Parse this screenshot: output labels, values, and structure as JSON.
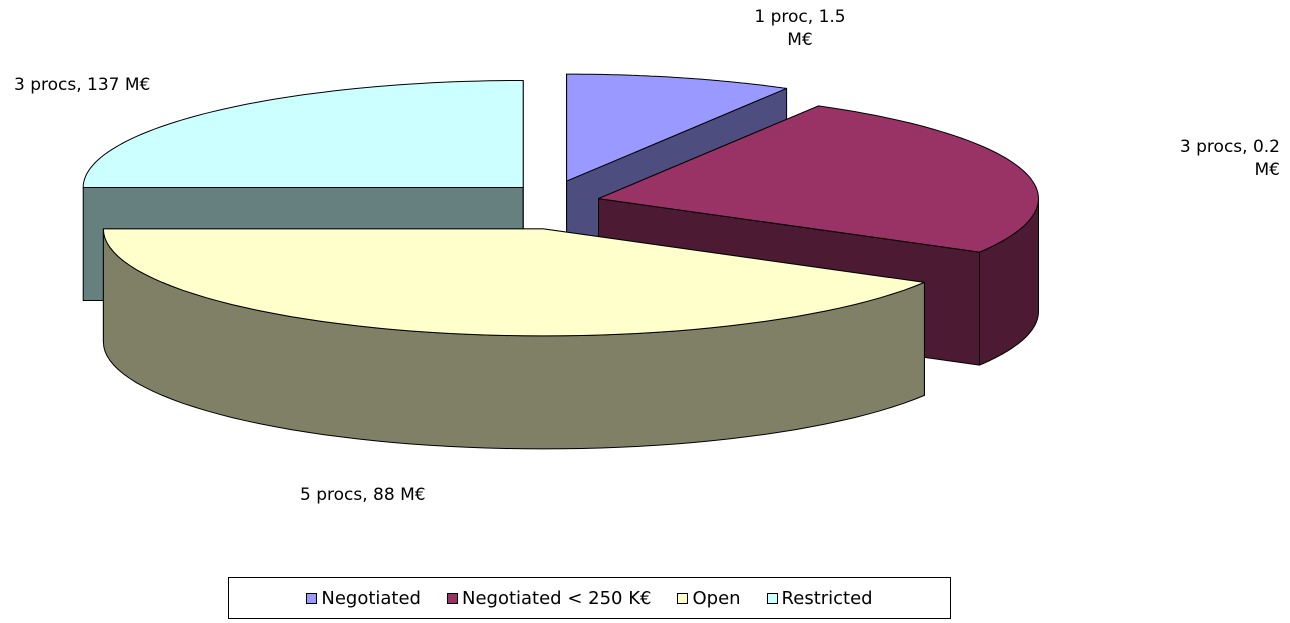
{
  "chart_data": {
    "type": "pie",
    "categories": [
      "Negotiated",
      "Negotiated < 250 K€",
      "Open",
      "Restricted"
    ],
    "values": [
      1,
      3,
      5,
      3
    ],
    "value_labels": [
      "1 proc, 1.5 M€",
      "3 procs, 0.2 M€",
      "5 procs, 88 M€",
      "3 procs, 137 M€"
    ],
    "colors": [
      "#9999ff",
      "#993366",
      "#ffffcc",
      "#ccffff"
    ],
    "legend": "bottom"
  }
}
